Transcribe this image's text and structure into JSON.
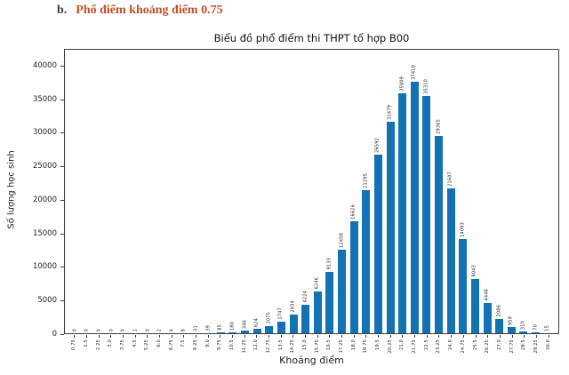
{
  "heading": {
    "index": "b.",
    "text": "Phổ điểm khoảng điểm 0.75"
  },
  "chart_data": {
    "type": "bar",
    "title": "Biểu đồ phổ điểm thi THPT tổ hợp B00",
    "xlabel": "Khoảng điểm",
    "ylabel": "Số lượng học sinh",
    "categories": [
      "0.75",
      "1.5",
      "2.25",
      "3.0",
      "3.75",
      "4.5",
      "5.25",
      "6.0",
      "6.75",
      "7.5",
      "8.25",
      "9.0",
      "9.75",
      "10.5",
      "11.25",
      "12.0",
      "12.75",
      "13.5",
      "14.25",
      "15.0",
      "15.75",
      "16.5",
      "17.25",
      "18.0",
      "18.75",
      "19.5",
      "20.25",
      "21.0",
      "21.75",
      "22.5",
      "23.25",
      "24.0",
      "24.75",
      "25.5",
      "26.25",
      "27.0",
      "27.75",
      "28.5",
      "29.25",
      "30.0"
    ],
    "values": [
      0,
      0,
      0,
      0,
      0,
      1,
      0,
      2,
      4,
      8,
      31,
      39,
      85,
      180,
      346,
      624,
      1075,
      1747,
      2834,
      4224,
      6246,
      9133,
      12458,
      16626,
      21295,
      26592,
      31479,
      35809,
      37410,
      35310,
      29365,
      21607,
      14093,
      8043,
      4448,
      2086,
      959,
      310,
      70,
      15
    ],
    "yticks": [
      0,
      5000,
      10000,
      15000,
      20000,
      25000,
      30000,
      35000,
      40000
    ],
    "ylim": [
      0,
      42500
    ],
    "bar_color": "#1272b4",
    "grid": false,
    "legend": "none",
    "value_labels": "rotated 90deg above each bar",
    "xtick_rotation": 90
  }
}
